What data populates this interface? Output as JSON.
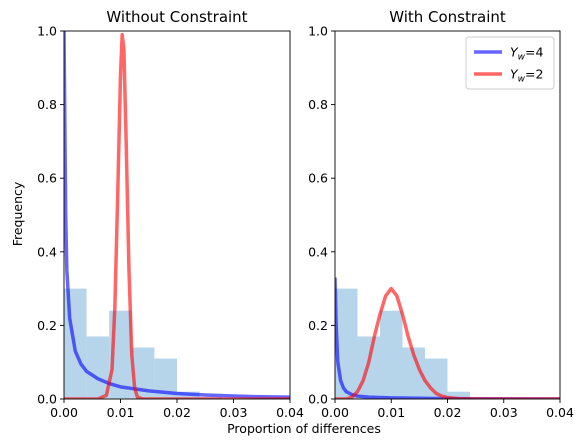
{
  "figure": {
    "xlabel": "Proportion of differences",
    "ylabel": "Frequency"
  },
  "legend": {
    "placement": "top-right of right panel",
    "entries": [
      {
        "label_main": "Y",
        "label_sub": "w",
        "label_rest": "=4",
        "color": "#0000ff"
      },
      {
        "label_main": "Y",
        "label_sub": "w",
        "label_rest": "=2",
        "color": "#ff0000"
      }
    ]
  },
  "chart_data": [
    {
      "type": "bar",
      "title": "Without Constraint",
      "xlim": [
        0,
        0.04
      ],
      "ylim": [
        0,
        1.0
      ],
      "xticks": [
        "0.00",
        "0.01",
        "0.02",
        "0.03",
        "0.04"
      ],
      "yticks": [
        "0.0",
        "0.2",
        "0.4",
        "0.6",
        "0.8",
        "1.0"
      ],
      "histogram": {
        "color": "#b7d5ea",
        "bins": [
          {
            "x0": 0.0,
            "x1": 0.004,
            "value": 0.3
          },
          {
            "x0": 0.004,
            "x1": 0.008,
            "value": 0.17
          },
          {
            "x0": 0.008,
            "x1": 0.012,
            "value": 0.24
          },
          {
            "x0": 0.012,
            "x1": 0.016,
            "value": 0.14
          },
          {
            "x0": 0.016,
            "x1": 0.02,
            "value": 0.11
          },
          {
            "x0": 0.02,
            "x1": 0.024,
            "value": 0.02
          },
          {
            "x0": 0.024,
            "x1": 0.028,
            "value": 0.005
          }
        ]
      },
      "series": [
        {
          "key": "yw4",
          "color": "#0000ff",
          "x": [
            0.0,
            0.0003,
            0.0005,
            0.001,
            0.002,
            0.003,
            0.004,
            0.006,
            0.008,
            0.01,
            0.015,
            0.02,
            0.025,
            0.03,
            0.035,
            0.04
          ],
          "y": [
            1.0,
            0.5,
            0.35,
            0.22,
            0.13,
            0.095,
            0.075,
            0.055,
            0.042,
            0.033,
            0.022,
            0.015,
            0.011,
            0.008,
            0.006,
            0.005
          ]
        },
        {
          "key": "yw2",
          "color": "#ff0000",
          "x": [
            0.0,
            0.006,
            0.0075,
            0.0085,
            0.009,
            0.0095,
            0.01,
            0.0103,
            0.0106,
            0.011,
            0.0115,
            0.012,
            0.0125,
            0.013,
            0.014,
            0.04
          ],
          "y": [
            0.0,
            0.0,
            0.01,
            0.08,
            0.25,
            0.55,
            0.88,
            0.99,
            0.95,
            0.7,
            0.35,
            0.12,
            0.03,
            0.005,
            0.0,
            0.0
          ]
        }
      ]
    },
    {
      "type": "bar",
      "title": "With Constraint",
      "xlim": [
        0,
        0.04
      ],
      "ylim": [
        0,
        1.0
      ],
      "xticks": [
        "0.00",
        "0.01",
        "0.02",
        "0.03",
        "0.04"
      ],
      "yticks": [
        "0.0",
        "0.2",
        "0.4",
        "0.6",
        "0.8",
        "1.0"
      ],
      "histogram": {
        "color": "#b7d5ea",
        "bins": [
          {
            "x0": 0.0,
            "x1": 0.004,
            "value": 0.3
          },
          {
            "x0": 0.004,
            "x1": 0.008,
            "value": 0.17
          },
          {
            "x0": 0.008,
            "x1": 0.012,
            "value": 0.24
          },
          {
            "x0": 0.012,
            "x1": 0.016,
            "value": 0.14
          },
          {
            "x0": 0.016,
            "x1": 0.02,
            "value": 0.11
          },
          {
            "x0": 0.02,
            "x1": 0.024,
            "value": 0.02
          }
        ]
      },
      "series": [
        {
          "key": "yw4",
          "color": "#0000ff",
          "x": [
            0.0,
            0.0002,
            0.0005,
            0.001,
            0.0015,
            0.002,
            0.003,
            0.004,
            0.006,
            0.01,
            0.02,
            0.04
          ],
          "y": [
            0.33,
            0.2,
            0.1,
            0.05,
            0.03,
            0.02,
            0.012,
            0.008,
            0.005,
            0.003,
            0.001,
            0.0
          ]
        },
        {
          "key": "yw2",
          "color": "#ff0000",
          "x": [
            0.0,
            0.002,
            0.003,
            0.004,
            0.005,
            0.006,
            0.007,
            0.008,
            0.009,
            0.01,
            0.011,
            0.012,
            0.013,
            0.014,
            0.015,
            0.016,
            0.017,
            0.018,
            0.019,
            0.02,
            0.022,
            0.025,
            0.04
          ],
          "y": [
            0.0,
            0.0,
            0.005,
            0.02,
            0.05,
            0.1,
            0.17,
            0.23,
            0.28,
            0.3,
            0.28,
            0.23,
            0.17,
            0.12,
            0.08,
            0.05,
            0.03,
            0.015,
            0.008,
            0.004,
            0.001,
            0.0,
            0.0
          ]
        }
      ]
    }
  ]
}
